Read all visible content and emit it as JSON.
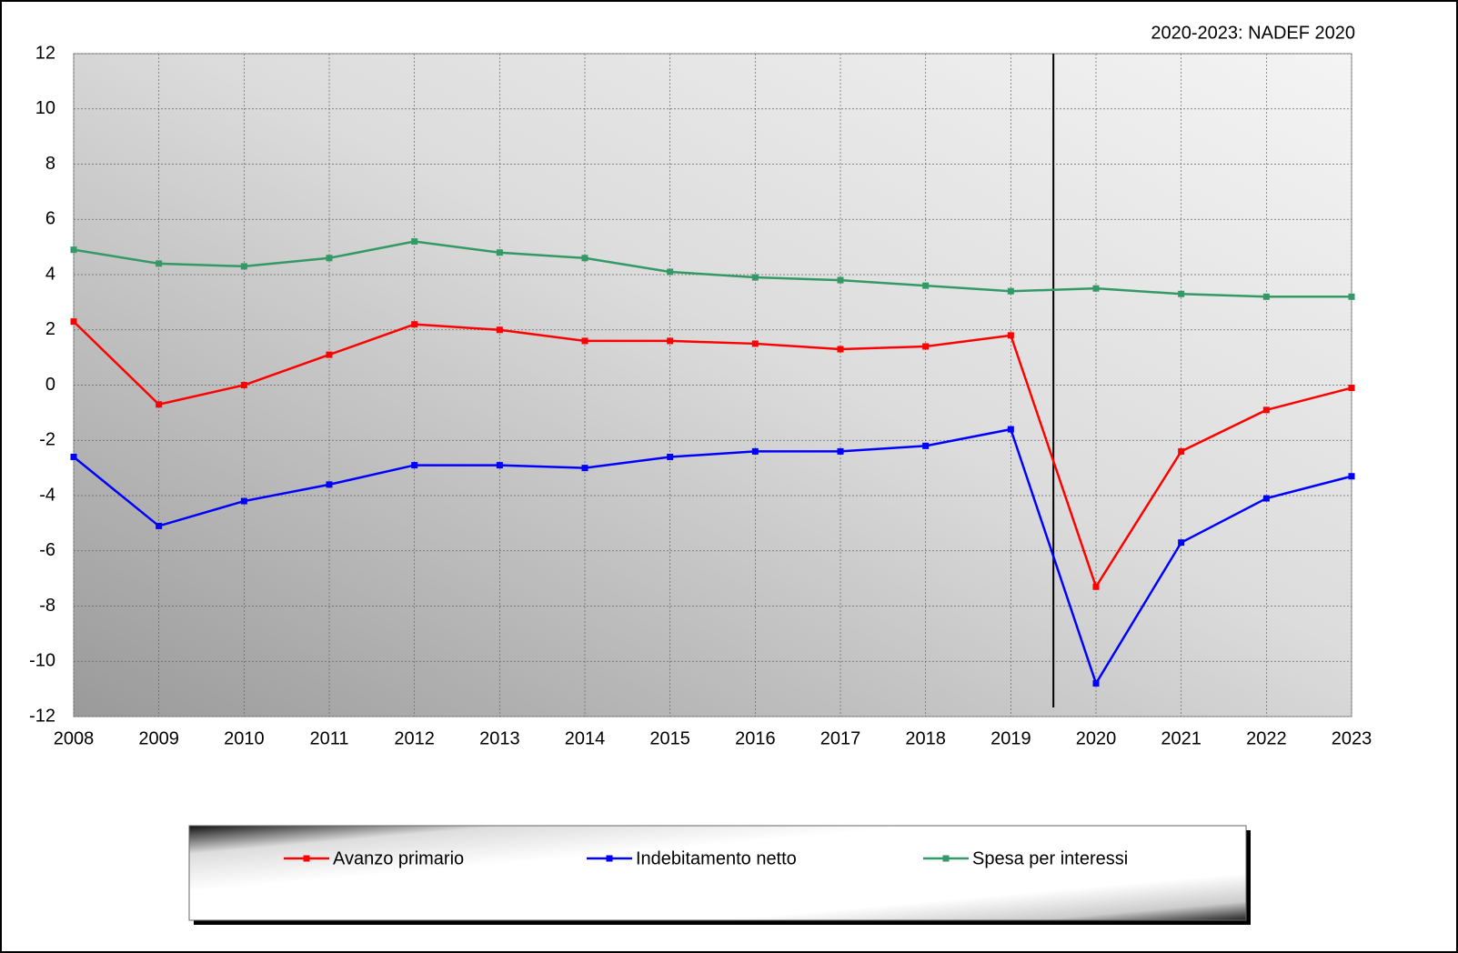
{
  "chart_data": {
    "type": "line",
    "annotation": "2020-2023: NADEF 2020",
    "x": [
      2008,
      2009,
      2010,
      2011,
      2012,
      2013,
      2014,
      2015,
      2016,
      2017,
      2018,
      2019,
      2020,
      2021,
      2022,
      2023
    ],
    "xlim": [
      2008,
      2023
    ],
    "xticks": [
      2008,
      2009,
      2010,
      2011,
      2012,
      2013,
      2014,
      2015,
      2016,
      2017,
      2018,
      2019,
      2020,
      2021,
      2022,
      2023
    ],
    "ylim": [
      -12,
      12
    ],
    "yticks": [
      -12,
      -10,
      -8,
      -6,
      -4,
      -2,
      0,
      2,
      4,
      6,
      8,
      10,
      12
    ],
    "grid": true,
    "vline": 2019.5,
    "legend": "bottom",
    "series": [
      {
        "name": "Avanzo primario",
        "color": "#ff0000",
        "values": [
          2.3,
          -0.7,
          0.0,
          1.1,
          2.2,
          2.0,
          1.6,
          1.6,
          1.5,
          1.3,
          1.4,
          1.8,
          -7.3,
          -2.4,
          -0.9,
          -0.1
        ]
      },
      {
        "name": "Indebitamento netto",
        "color": "#0000ff",
        "values": [
          -2.6,
          -5.1,
          -4.2,
          -3.6,
          -2.9,
          -2.9,
          -3.0,
          -2.6,
          -2.4,
          -2.4,
          -2.2,
          -1.6,
          -10.8,
          -5.7,
          -4.1,
          -3.3
        ]
      },
      {
        "name": "Spesa per interessi",
        "color": "#339966",
        "values": [
          4.9,
          4.4,
          4.3,
          4.6,
          5.2,
          4.8,
          4.6,
          4.1,
          3.9,
          3.8,
          3.6,
          3.4,
          3.5,
          3.3,
          3.2,
          3.2
        ]
      }
    ]
  }
}
